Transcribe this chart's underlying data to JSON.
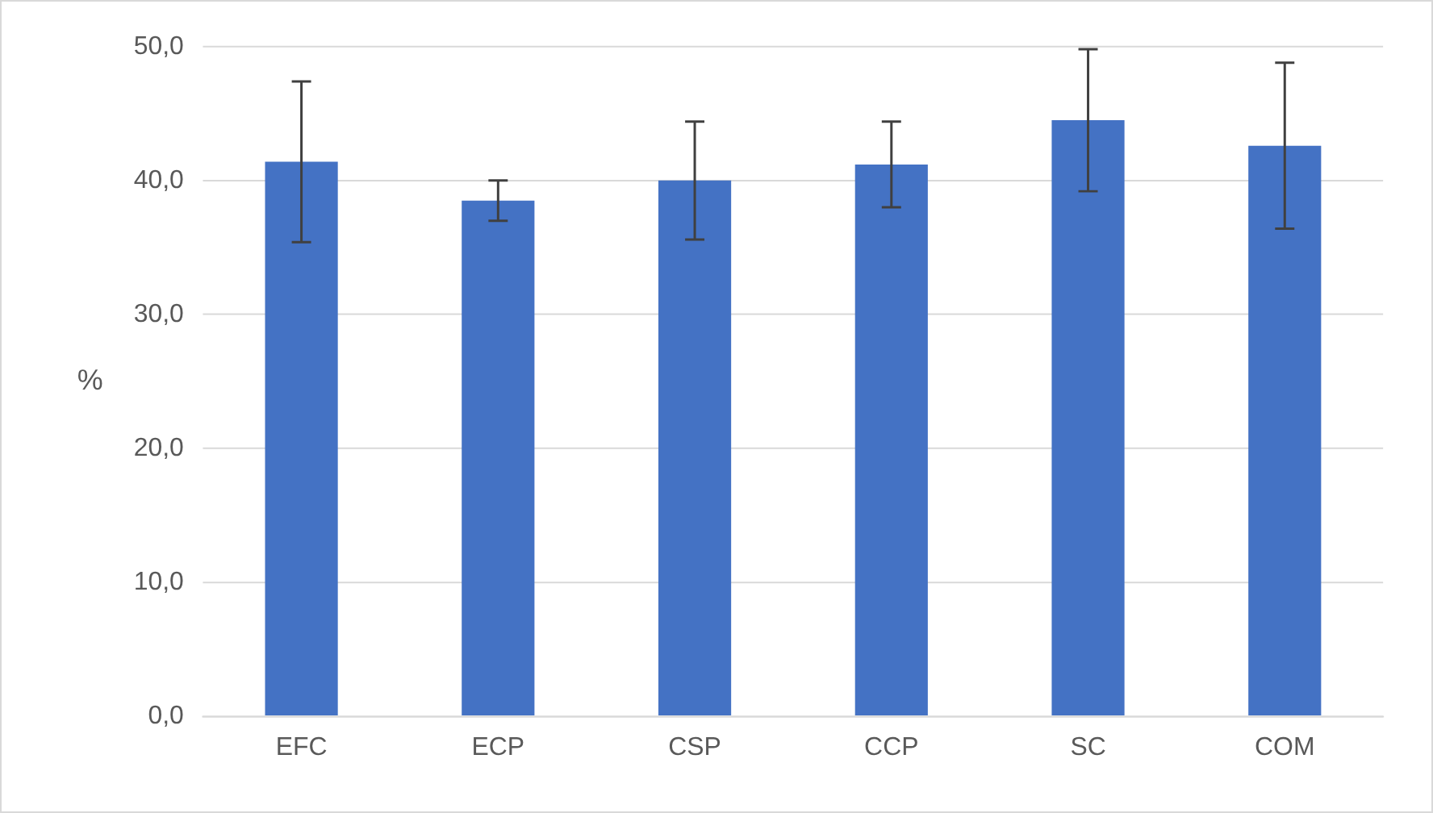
{
  "chart_data": {
    "type": "bar",
    "ylabel": "%",
    "categories": [
      "EFC",
      "ECP",
      "CSP",
      "CCP",
      "SC",
      "COM"
    ],
    "values": [
      41.4,
      38.5,
      40.0,
      41.2,
      44.5,
      42.6
    ],
    "errors": [
      6.0,
      1.5,
      4.4,
      3.2,
      5.3,
      6.2
    ],
    "color": "#4472c4",
    "ylim": [
      0,
      50
    ],
    "yticks": [
      {
        "value": 0,
        "label": "0,0"
      },
      {
        "value": 10,
        "label": "10,0"
      },
      {
        "value": 20,
        "label": "20,0"
      },
      {
        "value": 30,
        "label": "30,0"
      },
      {
        "value": 40,
        "label": "40,0"
      },
      {
        "value": 50,
        "label": "50,0"
      }
    ],
    "grid": "y"
  }
}
